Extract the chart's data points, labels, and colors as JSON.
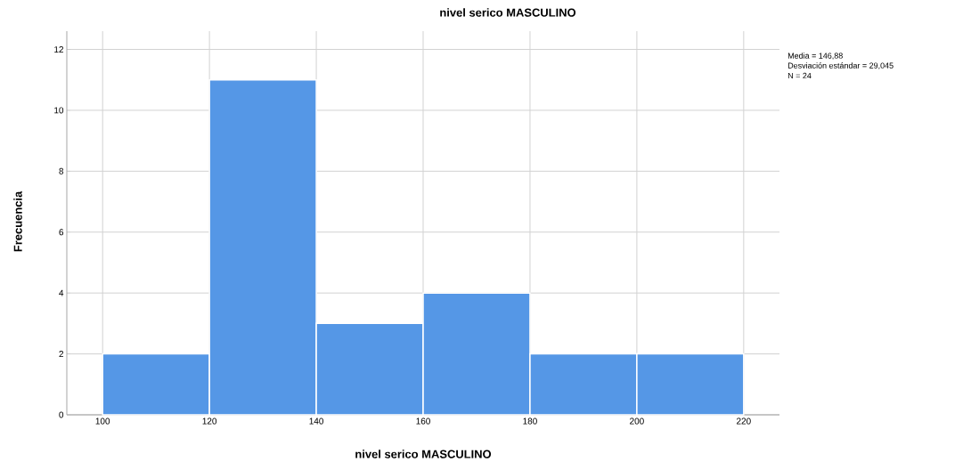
{
  "chart_data": {
    "type": "histogram",
    "title": "nivel serico MASCULINO",
    "xlabel": "nivel serico MASCULINO",
    "ylabel": "Frecuencia",
    "bins": [
      100,
      120,
      140,
      160,
      180,
      200,
      220
    ],
    "values": [
      2,
      11,
      3,
      4,
      2,
      2
    ],
    "color": "#5597e6",
    "xlim": [
      93.3,
      226.7
    ],
    "ylim": [
      0,
      12.6
    ],
    "xticks": [
      100,
      120,
      140,
      160,
      180,
      200,
      220
    ],
    "yticks": [
      0,
      2,
      4,
      6,
      8,
      10,
      12
    ],
    "grid": true,
    "annotations": [
      "Media = 146,88",
      "Desviación estándar = 29,045",
      "N = 24"
    ]
  }
}
